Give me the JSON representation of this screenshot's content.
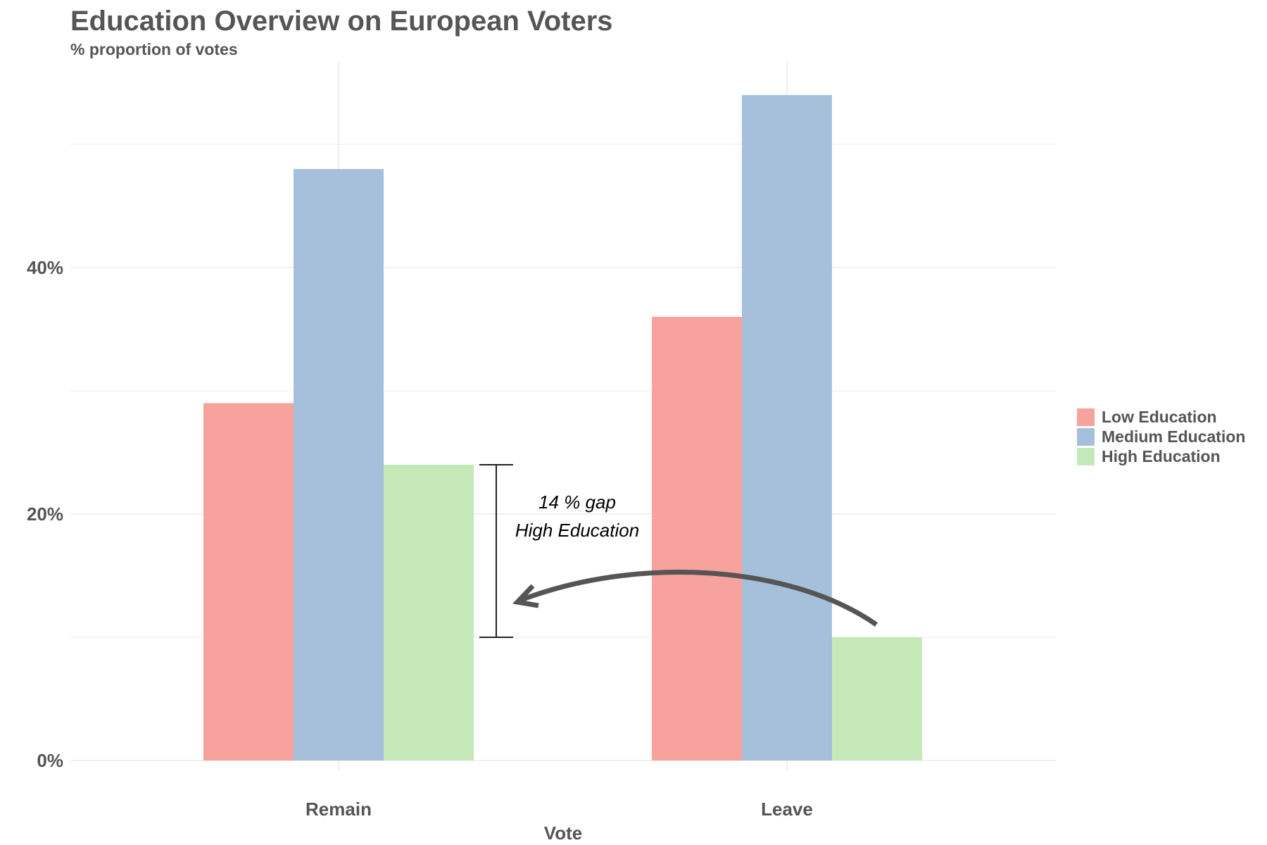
{
  "title": "Education Overview on European Voters",
  "subtitle": "% proportion of votes",
  "chart_data": {
    "type": "bar",
    "title": "Education Overview on European Voters",
    "subtitle": "% proportion of votes",
    "xlabel": "Vote",
    "ylabel": "",
    "categories": [
      "Remain",
      "Leave"
    ],
    "series": [
      {
        "name": "Low Education",
        "values": [
          29,
          36
        ],
        "color": "#F7A29D"
      },
      {
        "name": "Medium Education",
        "values": [
          48,
          54
        ],
        "color": "#A6C0DB"
      },
      {
        "name": "High Education",
        "values": [
          24,
          10
        ],
        "color": "#C4E8B8"
      }
    ],
    "y_ticks": [
      {
        "value": 0,
        "label": "0%"
      },
      {
        "value": 20,
        "label": "20%"
      },
      {
        "value": 40,
        "label": "40%"
      }
    ],
    "ylim": [
      0,
      57
    ],
    "grid": true,
    "legend_position": "right",
    "annotation": {
      "lines": [
        "14 % gap",
        "High Education"
      ],
      "gap_from": 10,
      "gap_to": 24
    }
  }
}
